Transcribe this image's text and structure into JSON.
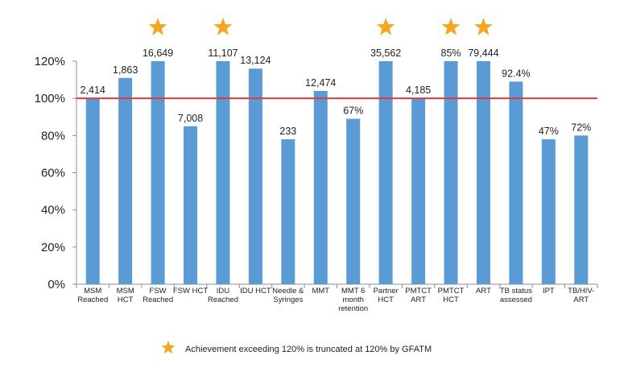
{
  "chart_data": {
    "type": "bar",
    "title": "",
    "xlabel": "",
    "ylabel": "",
    "ylim": [
      0,
      120
    ],
    "yticks": [
      "0%",
      "20%",
      "40%",
      "60%",
      "80%",
      "100%",
      "120%"
    ],
    "ytick_values": [
      0,
      20,
      40,
      60,
      80,
      100,
      120
    ],
    "grid": false,
    "reference_line": {
      "value": 100,
      "color": "#e23a3a"
    },
    "bar_color": "#5b9bd5",
    "star_color": "#f5a623",
    "categories": [
      [
        "MSM",
        "Reached"
      ],
      [
        "MSM",
        "HCT"
      ],
      [
        "FSW",
        "Reached"
      ],
      [
        "FSW HCT"
      ],
      [
        "IDU",
        "Reached"
      ],
      [
        "IDU HCT"
      ],
      [
        "Needle &",
        "Syringes"
      ],
      [
        "MMT"
      ],
      [
        "MMT 6",
        "month",
        "retention"
      ],
      [
        "Partner",
        "HCT"
      ],
      [
        "PMTCT",
        "ART"
      ],
      [
        "PMTCT",
        "HCT"
      ],
      [
        "ART"
      ],
      [
        "TB status",
        "assessed"
      ],
      [
        "IPT"
      ],
      [
        "TB/HIV-",
        "ART"
      ]
    ],
    "values": [
      100,
      111,
      120,
      85,
      120,
      116,
      78,
      104,
      89,
      120,
      100,
      120,
      120,
      109,
      78,
      80
    ],
    "data_labels": [
      "2,414",
      "1,863",
      "16,649",
      "7,008",
      "11,107",
      "13,124",
      "233",
      "12,474",
      "67%",
      "35,562",
      "4,185",
      "85%",
      "79,444",
      "92.4%",
      "47%",
      "72%"
    ],
    "starred": [
      false,
      false,
      true,
      false,
      true,
      false,
      false,
      false,
      false,
      true,
      false,
      true,
      true,
      false,
      false,
      false
    ],
    "legend": {
      "text": "Achievement exceeding 120% is truncated at 120% by GFATM",
      "placement": "bottom-center"
    }
  }
}
